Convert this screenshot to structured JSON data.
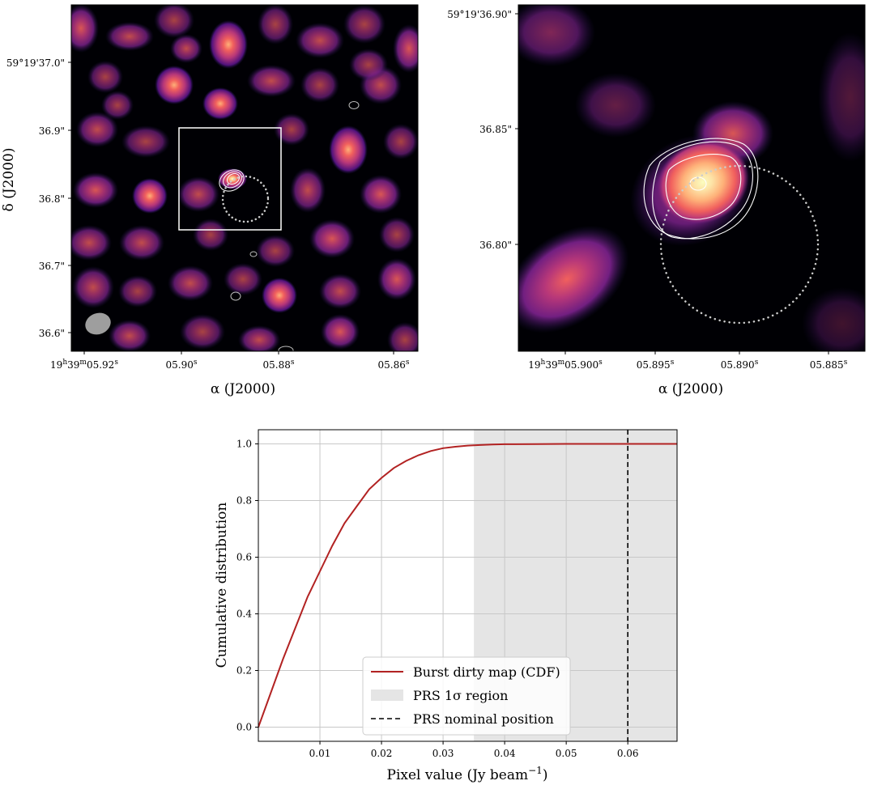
{
  "chart_data": [
    {
      "type": "heatmap",
      "panel": "left",
      "description": "Wide-field burst dirty map with inset box and contours",
      "xlabel": "α (J2000)",
      "ylabel": "δ (J2000)",
      "xticks": [
        {
          "pre": "19",
          "h": "h",
          "mid": "39",
          "m": "m",
          "sec": "05.92",
          "s": "s"
        },
        {
          "pre": "",
          "h": "",
          "mid": "",
          "m": "",
          "sec": "05.90",
          "s": "s"
        },
        {
          "pre": "",
          "h": "",
          "mid": "",
          "m": "",
          "sec": "05.88",
          "s": "s"
        },
        {
          "pre": "",
          "h": "",
          "mid": "",
          "m": "",
          "sec": "05.86",
          "s": "s"
        }
      ],
      "yticks": [
        "59°19'37.0\"",
        "36.9\"",
        "36.8\"",
        "36.7\"",
        "36.6\""
      ],
      "colormap": "magma"
    },
    {
      "type": "heatmap",
      "panel": "right",
      "description": "Zoomed view of the inset region",
      "xlabel": "α (J2000)",
      "ylabel": "",
      "xticks": [
        {
          "pre": "19",
          "h": "h",
          "mid": "39",
          "m": "m",
          "sec": "05.900",
          "s": "s"
        },
        {
          "pre": "",
          "h": "",
          "mid": "",
          "m": "",
          "sec": "05.895",
          "s": "s"
        },
        {
          "pre": "",
          "h": "",
          "mid": "",
          "m": "",
          "sec": "05.890",
          "s": "s"
        },
        {
          "pre": "",
          "h": "",
          "mid": "",
          "m": "",
          "sec": "05.885",
          "s": "s"
        }
      ],
      "yticks": [
        "59°19'36.90\"",
        "36.85\"",
        "36.80\""
      ],
      "colormap": "magma"
    },
    {
      "type": "line",
      "panel": "bottom",
      "xlabel": "Pixel value (Jy beam",
      "xlabel_sup": "−1",
      "xlabel_end": ")",
      "ylabel": "Cumulative distribution",
      "xlim": [
        0.0,
        0.068
      ],
      "ylim": [
        -0.05,
        1.05
      ],
      "xticks": [
        0.01,
        0.02,
        0.03,
        0.04,
        0.05,
        0.06
      ],
      "xtick_labels": [
        "0.01",
        "0.02",
        "0.03",
        "0.04",
        "0.05",
        "0.06"
      ],
      "yticks": [
        0.0,
        0.2,
        0.4,
        0.6,
        0.8,
        1.0
      ],
      "ytick_labels": [
        "0.0",
        "0.2",
        "0.4",
        "0.6",
        "0.8",
        "1.0"
      ],
      "grid": true,
      "series": [
        {
          "name": "Burst dirty map (CDF)",
          "color": "#b22222",
          "x": [
            0.0,
            0.002,
            0.004,
            0.006,
            0.008,
            0.01,
            0.012,
            0.014,
            0.016,
            0.018,
            0.02,
            0.022,
            0.024,
            0.026,
            0.028,
            0.03,
            0.032,
            0.034,
            0.036,
            0.038,
            0.04,
            0.045,
            0.05,
            0.055,
            0.06,
            0.068
          ],
          "y": [
            0.0,
            0.12,
            0.24,
            0.35,
            0.46,
            0.55,
            0.64,
            0.72,
            0.78,
            0.84,
            0.88,
            0.915,
            0.94,
            0.96,
            0.975,
            0.985,
            0.99,
            0.994,
            0.996,
            0.998,
            0.999,
            0.9995,
            1.0,
            1.0,
            1.0,
            1.0
          ]
        }
      ],
      "shaded_region": {
        "name": "PRS 1σ region",
        "x0": 0.035,
        "x1": 0.068,
        "color": "#e5e5e5"
      },
      "vline": {
        "name": "PRS nominal position",
        "x": 0.06,
        "color": "#000000"
      },
      "legend": "bottom-center"
    }
  ]
}
